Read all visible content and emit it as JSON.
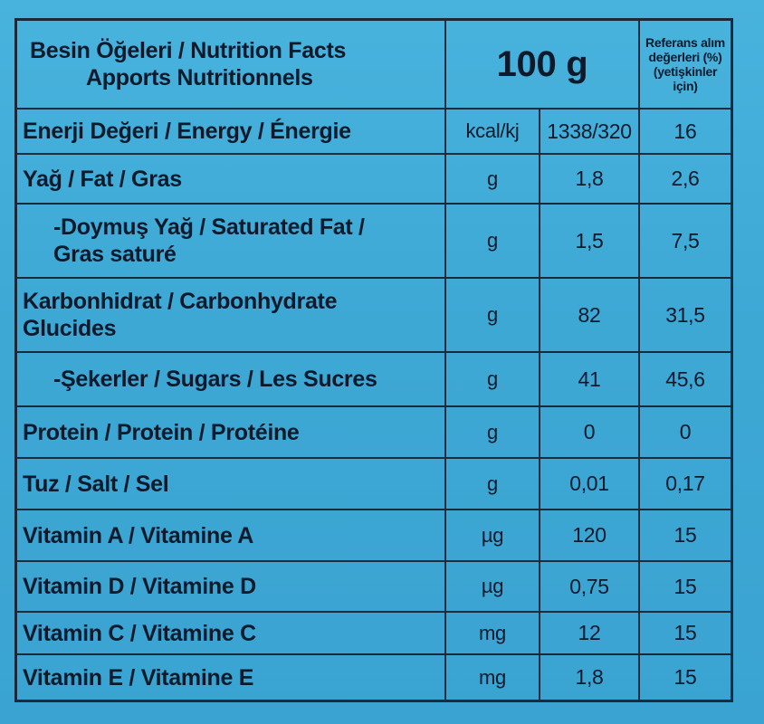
{
  "header": {
    "title_line1": "Besin Öğeleri / Nutrition Facts",
    "title_line2": "Apports Nutritionnels",
    "quantity": "100 g",
    "ref_line1": "Referans alım",
    "ref_line2": "değerleri (%)",
    "ref_line3": "(yetişkinler",
    "ref_line4": "için)"
  },
  "rows": [
    {
      "name": "Enerji Değeri / Energy / Énergie",
      "unit": "kcal/kj",
      "amount": "1338/320",
      "ref": "16"
    },
    {
      "name": "Yağ / Fat / Gras",
      "unit": "g",
      "amount": "1,8",
      "ref": "2,6"
    },
    {
      "name_line1": "-Doymuş  Yağ / Saturated Fat /",
      "name_line2": "Gras saturé",
      "unit": "g",
      "amount": "1,5",
      "ref": "7,5"
    },
    {
      "name_line1": "Karbonhidrat / Carbonhydrate",
      "name_line2": "Glucides",
      "unit": "g",
      "amount": "82",
      "ref": "31,5"
    },
    {
      "name": "-Şekerler / Sugars / Les Sucres",
      "unit": "g",
      "amount": "41",
      "ref": "45,6"
    },
    {
      "name": "Protein / Protein / Protéine",
      "unit": "g",
      "amount": "0",
      "ref": "0"
    },
    {
      "name": "Tuz / Salt / Sel",
      "unit": "g",
      "amount": "0,01",
      "ref": "0,17"
    },
    {
      "name": "Vitamin A / Vitamine A",
      "unit": "µg",
      "amount": "120",
      "ref": "15"
    },
    {
      "name": "Vitamin D / Vitamine D",
      "unit": "µg",
      "amount": "0,75",
      "ref": "15"
    },
    {
      "name": "Vitamin C / Vitamine C",
      "unit": "mg",
      "amount": "12",
      "ref": "15"
    },
    {
      "name": "Vitamin E / Vitamine E",
      "unit": "mg",
      "amount": "1,8",
      "ref": "15"
    }
  ]
}
